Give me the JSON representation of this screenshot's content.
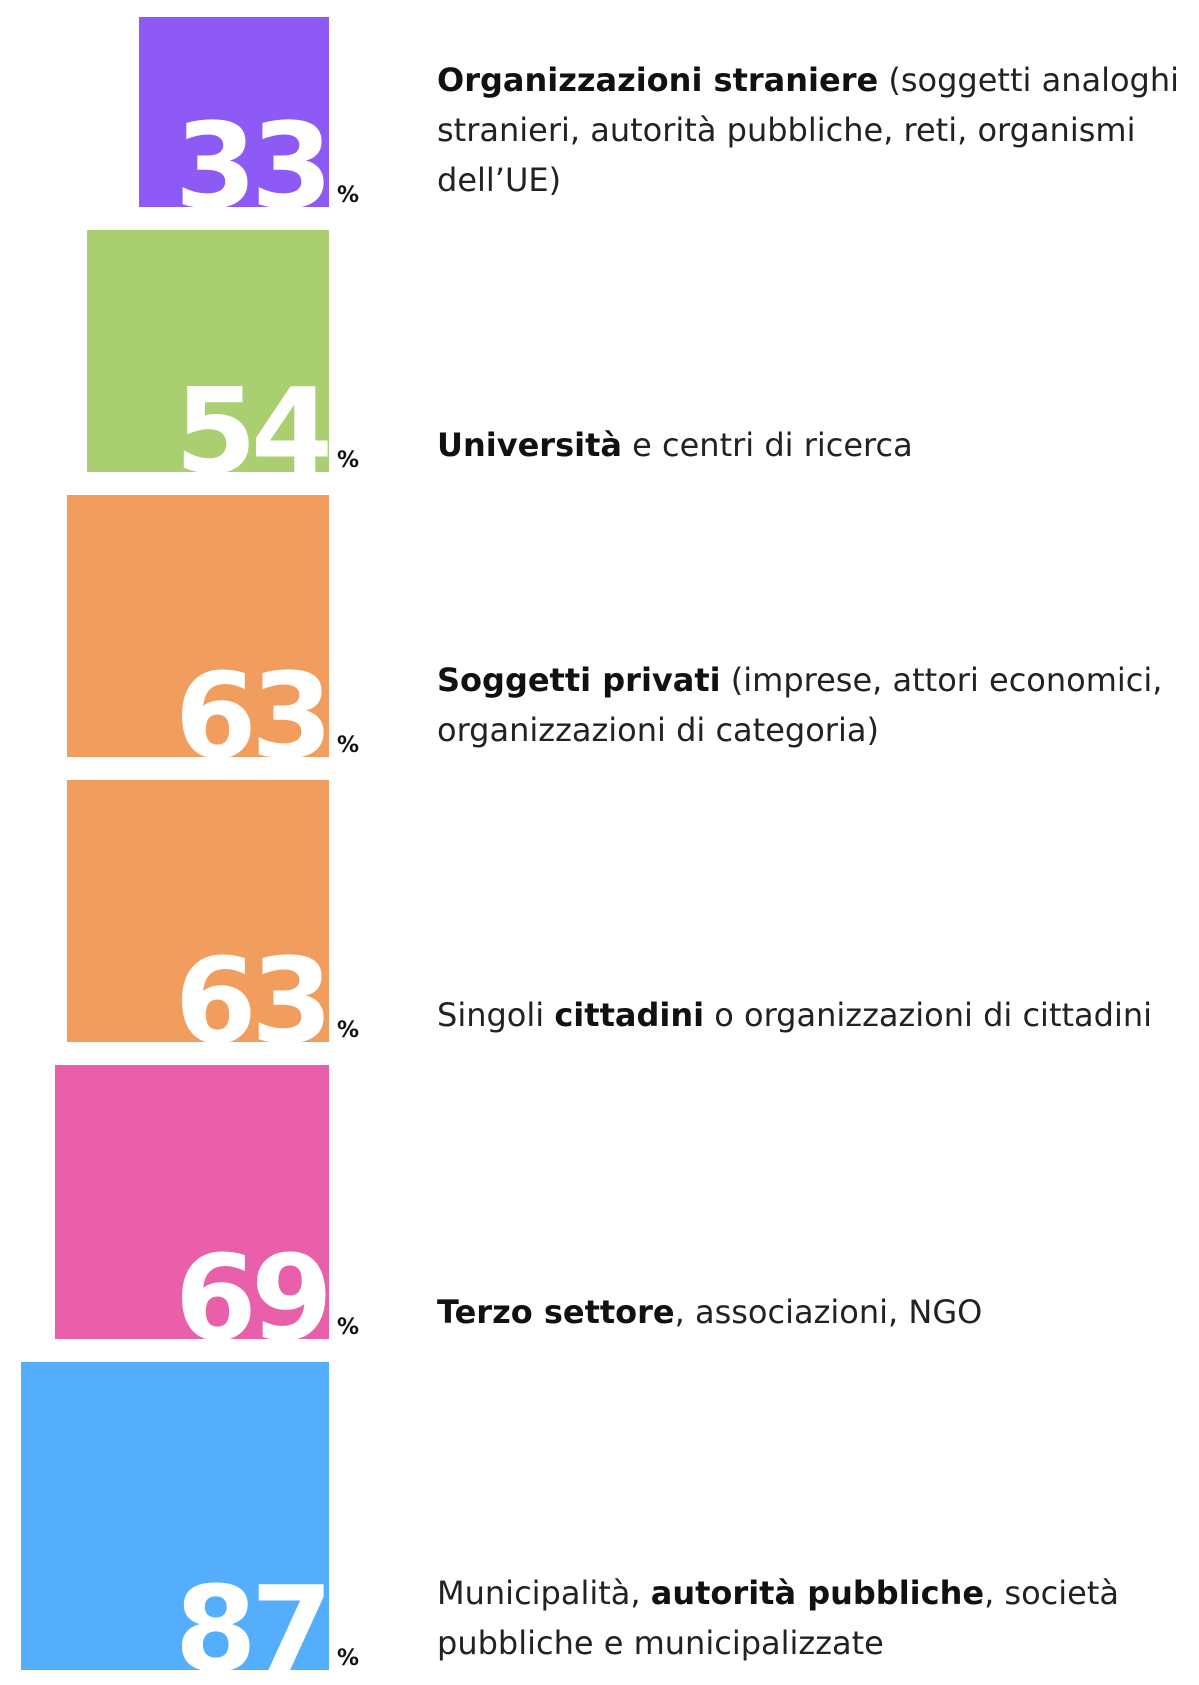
{
  "chart_data": {
    "type": "square-area",
    "unit": "%",
    "values": [
      33,
      54,
      63,
      63,
      69,
      87
    ],
    "colors": [
      "#8e5af5",
      "#aacf70",
      "#f09d5d",
      "#f09d5d",
      "#e95faa",
      "#54aefb"
    ],
    "labels": [
      [
        {
          "text": "Organizzazioni straniere",
          "bold": true
        },
        {
          "text": " (soggetti analoghi stranieri, autorità pubbliche, reti, organismi dell’UE)",
          "bold": false
        }
      ],
      [
        {
          "text": "Università",
          "bold": true
        },
        {
          "text": " e centri di ricerca",
          "bold": false
        }
      ],
      [
        {
          "text": "Soggetti privati",
          "bold": true
        },
        {
          "text": " (imprese, attori economici, organizzazioni di categoria)",
          "bold": false
        }
      ],
      [
        {
          "text": "Singoli ",
          "bold": false
        },
        {
          "text": "cittadini",
          "bold": true
        },
        {
          "text": " o organizzazioni di cittadini",
          "bold": false
        }
      ],
      [
        {
          "text": "Terzo settore",
          "bold": true
        },
        {
          "text": ", associazioni, NGO",
          "bold": false
        }
      ],
      [
        {
          "text": "Municipalità, ",
          "bold": false
        },
        {
          "text": "autorità pubbliche",
          "bold": true
        },
        {
          "text": ", società pubbliche e municipalizzate",
          "bold": false
        }
      ]
    ]
  }
}
